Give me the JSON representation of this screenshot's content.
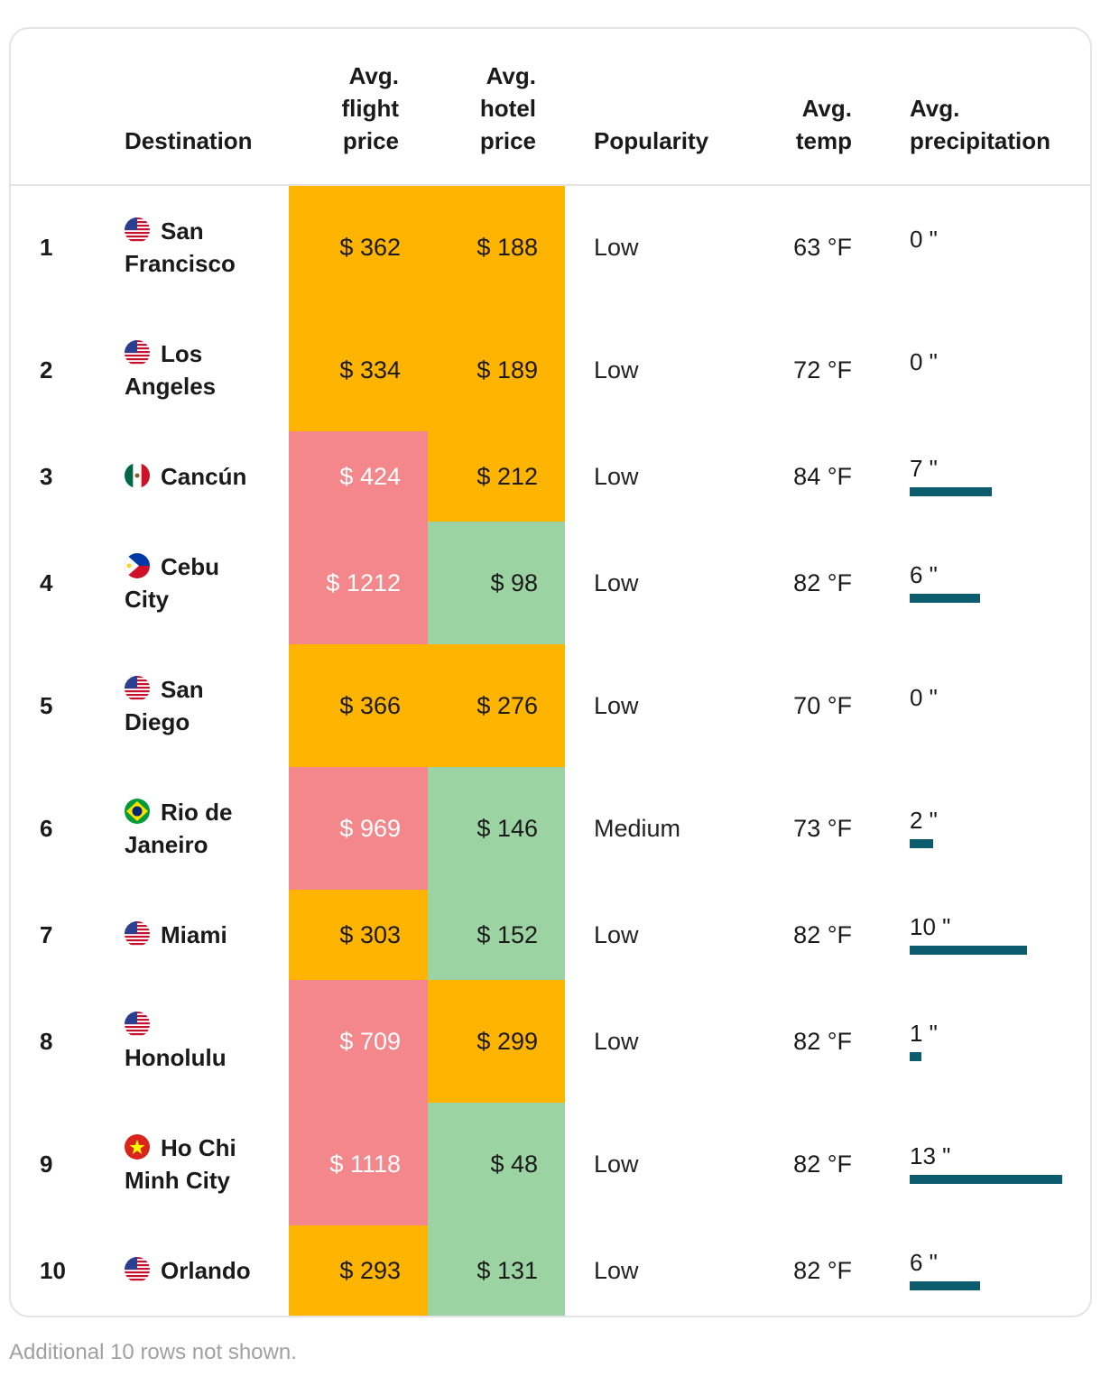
{
  "headers": {
    "destination": "Destination",
    "flight": [
      "Avg.",
      "flight",
      "price"
    ],
    "hotel": [
      "Avg.",
      "hotel",
      "price"
    ],
    "popularity": "Popularity",
    "temp": [
      "Avg.",
      "temp"
    ],
    "precip": [
      "Avg.",
      "precipitation"
    ]
  },
  "colors": {
    "orange": "#ffb400",
    "red": "#f4878b",
    "green": "#9bd3a3",
    "bar": "#0c5c6e"
  },
  "rows": [
    {
      "rank": "1",
      "flag": "us",
      "name": [
        "San",
        "Francisco"
      ],
      "flight": "$ 362",
      "flight_color": "orange",
      "hotel": "$ 188",
      "hotel_color": "orange",
      "popularity": "Low",
      "temp": "63 °F",
      "precip_label": "0 \"",
      "precip": 0
    },
    {
      "rank": "2",
      "flag": "us",
      "name": [
        "Los",
        "Angeles"
      ],
      "flight": "$ 334",
      "flight_color": "orange",
      "hotel": "$ 189",
      "hotel_color": "orange",
      "popularity": "Low",
      "temp": "72 °F",
      "precip_label": "0 \"",
      "precip": 0
    },
    {
      "rank": "3",
      "flag": "mx",
      "name": [
        "Cancún"
      ],
      "flight": "$ 424",
      "flight_color": "red",
      "hotel": "$ 212",
      "hotel_color": "orange",
      "popularity": "Low",
      "temp": "84 °F",
      "precip_label": "7 \"",
      "precip": 7
    },
    {
      "rank": "4",
      "flag": "ph",
      "name": [
        "Cebu",
        "City"
      ],
      "flight": "$ 1212",
      "flight_color": "red",
      "hotel": "$ 98",
      "hotel_color": "green",
      "popularity": "Low",
      "temp": "82 °F",
      "precip_label": "6 \"",
      "precip": 6
    },
    {
      "rank": "5",
      "flag": "us",
      "name": [
        "San",
        "Diego"
      ],
      "flight": "$ 366",
      "flight_color": "orange",
      "hotel": "$ 276",
      "hotel_color": "orange",
      "popularity": "Low",
      "temp": "70 °F",
      "precip_label": "0 \"",
      "precip": 0
    },
    {
      "rank": "6",
      "flag": "br",
      "name": [
        "Rio de",
        "Janeiro"
      ],
      "flight": "$ 969",
      "flight_color": "red",
      "hotel": "$ 146",
      "hotel_color": "green",
      "popularity": "Medium",
      "temp": "73 °F",
      "precip_label": "2 \"",
      "precip": 2
    },
    {
      "rank": "7",
      "flag": "us",
      "name": [
        "Miami"
      ],
      "flight": "$ 303",
      "flight_color": "orange",
      "hotel": "$ 152",
      "hotel_color": "green",
      "popularity": "Low",
      "temp": "82 °F",
      "precip_label": "10 \"",
      "precip": 10
    },
    {
      "rank": "8",
      "flag": "us",
      "name": [
        "",
        "Honolulu"
      ],
      "flight": "$ 709",
      "flight_color": "red",
      "hotel": "$ 299",
      "hotel_color": "orange",
      "popularity": "Low",
      "temp": "82 °F",
      "precip_label": "1 \"",
      "precip": 1
    },
    {
      "rank": "9",
      "flag": "vn",
      "name": [
        "Ho Chi",
        "Minh City"
      ],
      "flight": "$ 1118",
      "flight_color": "red",
      "hotel": "$ 48",
      "hotel_color": "green",
      "popularity": "Low",
      "temp": "82 °F",
      "precip_label": "13 \"",
      "precip": 13
    },
    {
      "rank": "10",
      "flag": "us",
      "name": [
        "Orlando"
      ],
      "flight": "$ 293",
      "flight_color": "orange",
      "hotel": "$ 131",
      "hotel_color": "green",
      "popularity": "Low",
      "temp": "82 °F",
      "precip_label": "6 \"",
      "precip": 6
    }
  ],
  "footnote": "Additional 10 rows not shown.",
  "chart_data": {
    "type": "table",
    "title": "",
    "columns": [
      "Destination",
      "Avg. flight price",
      "Avg. hotel price",
      "Popularity",
      "Avg. temp",
      "Avg. precipitation"
    ],
    "series": [
      {
        "name": "Avg. flight price ($)",
        "values": [
          362,
          334,
          424,
          1212,
          366,
          969,
          303,
          709,
          1118,
          293
        ]
      },
      {
        "name": "Avg. hotel price ($)",
        "values": [
          188,
          189,
          212,
          98,
          276,
          146,
          152,
          299,
          48,
          131
        ]
      },
      {
        "name": "Avg. temp (°F)",
        "values": [
          63,
          72,
          84,
          82,
          70,
          73,
          82,
          82,
          82,
          82
        ]
      },
      {
        "name": "Avg. precipitation (in)",
        "values": [
          0,
          0,
          7,
          6,
          0,
          2,
          10,
          1,
          13,
          6
        ]
      }
    ],
    "categories": [
      "San Francisco",
      "Los Angeles",
      "Cancún",
      "Cebu City",
      "San Diego",
      "Rio de Janeiro",
      "Miami",
      "Honolulu",
      "Ho Chi Minh City",
      "Orlando"
    ],
    "precip_max": 13
  }
}
